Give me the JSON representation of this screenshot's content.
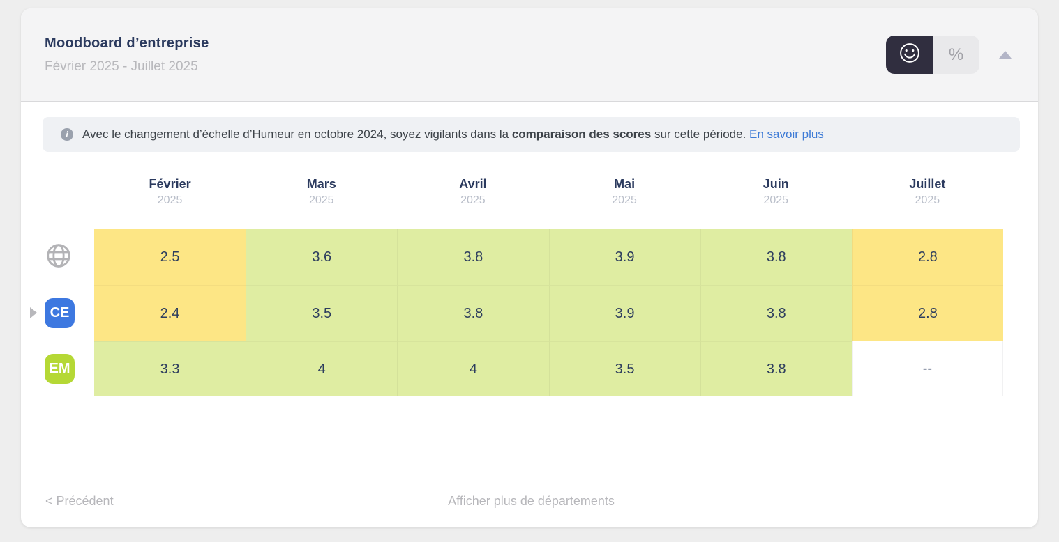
{
  "header": {
    "title": "Moodboard d’entreprise",
    "subtitle": "Février 2025 - Juillet 2025",
    "toggle": {
      "smiley_icon": "smiley-icon",
      "percent_label": "%",
      "selected": "smiley",
      "selected_bg": "#302e3f",
      "unselected_bg": "#e9e9eb"
    }
  },
  "banner": {
    "info_icon": "i",
    "text_before": "Avec le changement d’échelle d’Humeur en octobre 2024, soyez vigilants dans la ",
    "text_bold": "comparaison des scores",
    "text_after": " sur cette période. ",
    "link_label": "En savoir plus",
    "link_color": "#3e7bd6"
  },
  "table": {
    "columns": [
      {
        "month": "Février",
        "year": "2025"
      },
      {
        "month": "Mars",
        "year": "2025"
      },
      {
        "month": "Avril",
        "year": "2025"
      },
      {
        "month": "Mai",
        "year": "2025"
      },
      {
        "month": "Juin",
        "year": "2025"
      },
      {
        "month": "Juillet",
        "year": "2025"
      }
    ],
    "rows": [
      {
        "id": "company",
        "icon": "globe-icon",
        "values": [
          "2.5",
          "3.6",
          "3.8",
          "3.9",
          "3.8",
          "2.8"
        ],
        "tones": [
          "yellow",
          "green",
          "green",
          "green",
          "green",
          "yellow"
        ]
      },
      {
        "id": "ce",
        "label": "CE",
        "badge_color": "#3d78e0",
        "expandable": true,
        "values": [
          "2.4",
          "3.5",
          "3.8",
          "3.9",
          "3.8",
          "2.8"
        ],
        "tones": [
          "yellow",
          "green",
          "green",
          "green",
          "green",
          "yellow"
        ]
      },
      {
        "id": "em",
        "label": "EM",
        "badge_color": "#b5d835",
        "values": [
          "3.3",
          "4",
          "4",
          "3.5",
          "3.8",
          "--"
        ],
        "tones": [
          "green",
          "green",
          "green",
          "green",
          "green",
          "empty"
        ]
      }
    ],
    "colors": {
      "yellow": "#fde685",
      "green": "#dfeda2",
      "empty": "#ffffff",
      "text": "#2e3e5e"
    }
  },
  "footer": {
    "previous_label": "< Précédent",
    "more_label": "Afficher plus de départements"
  }
}
